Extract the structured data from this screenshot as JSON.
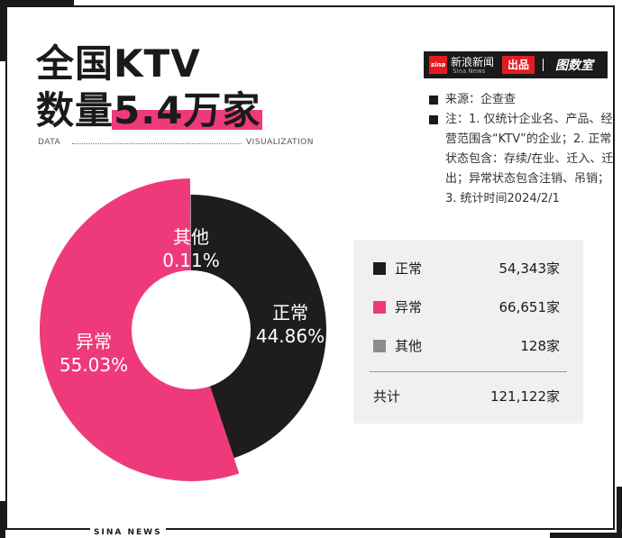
{
  "title": {
    "line1": "全国KTV",
    "line2_prefix": "数量",
    "line2_highlight": "5.4万家"
  },
  "deco": {
    "left": "DATA",
    "right": "VISUALIZATION"
  },
  "brand": {
    "logo_text": "sina",
    "name": "新浪新闻",
    "sub": "Sina News",
    "badge": "出品",
    "lab": "图数室"
  },
  "notes": [
    "来源：企查查",
    "注：1. 仅统计企业名、产品、经营范围含“KTV”的企业；2. 正常状态包含：存续/在业、迁入、迁出；异常状态包含注销、吊销；3. 统计时间2024/2/1"
  ],
  "legend": [
    {
      "label": "正常",
      "value": "54,343家",
      "color": "#1f1c1d"
    },
    {
      "label": "异常",
      "value": "66,651家",
      "color": "#ee3a7a"
    },
    {
      "label": "其他",
      "value": "128家",
      "color": "#8c8c8c"
    }
  ],
  "total": {
    "label": "共计",
    "value": "121,122家"
  },
  "footer": "SINA NEWS",
  "chart_data": {
    "type": "pie",
    "categories": [
      "正常",
      "异常",
      "其他"
    ],
    "values": [
      54343,
      66651,
      128
    ],
    "percent_labels": [
      "44.86%",
      "55.03%",
      "0.11%"
    ],
    "colors": [
      "#1f1c1d",
      "#ee3a7a",
      "#8c8c8c"
    ],
    "donut": true
  }
}
